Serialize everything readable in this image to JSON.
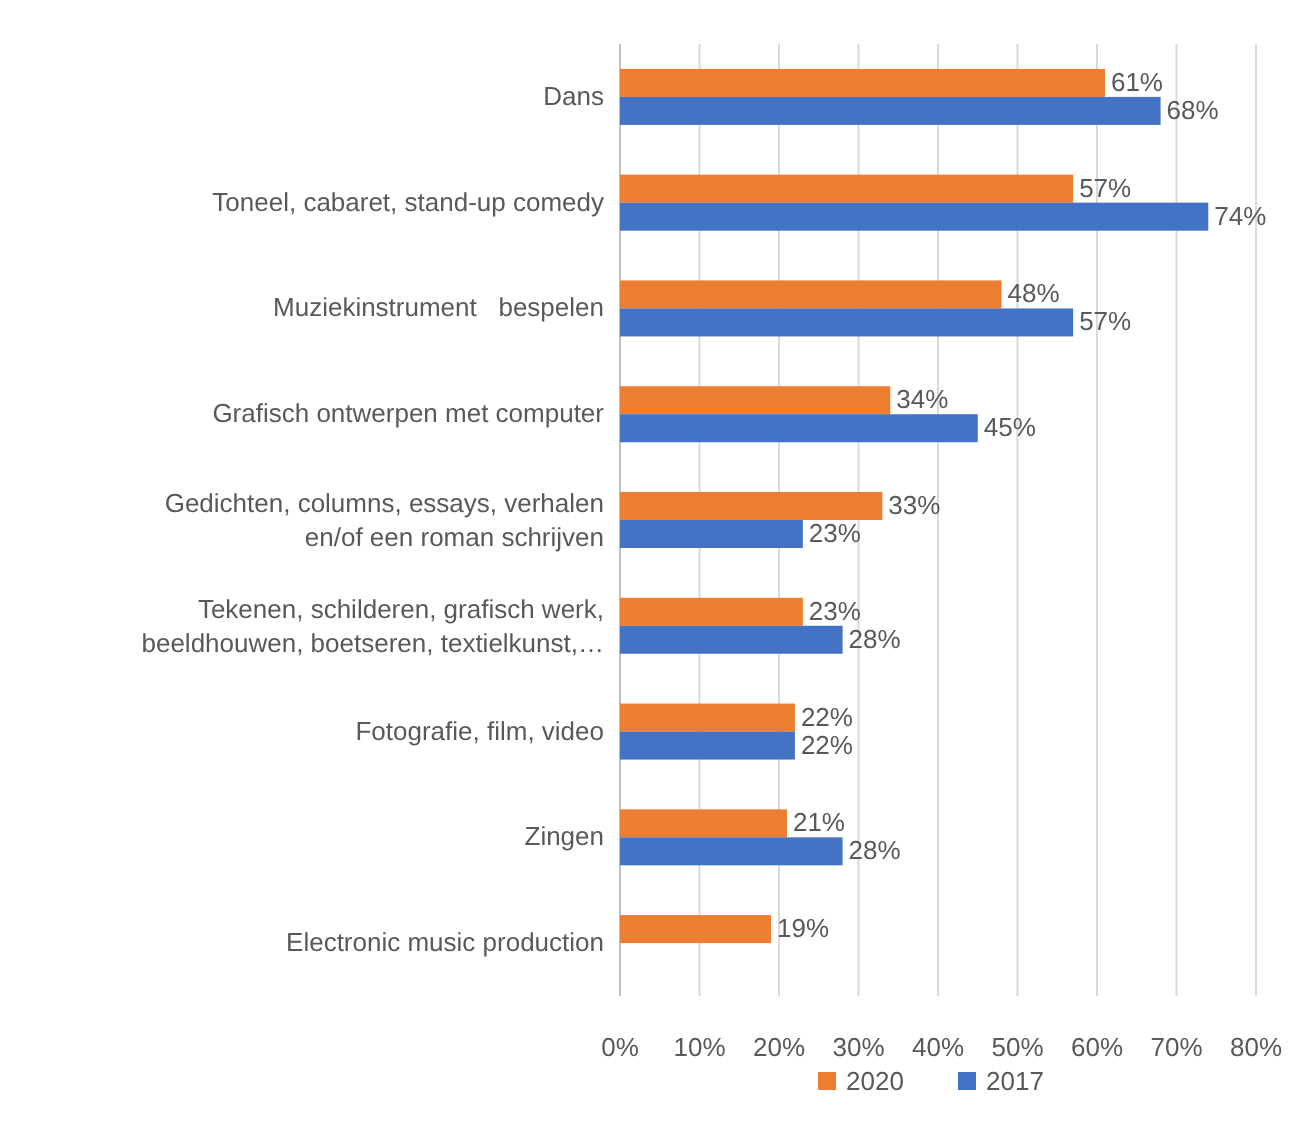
{
  "chart_data": {
    "type": "bar",
    "orientation": "horizontal",
    "categories": [
      "Dans",
      "Toneel, cabaret, stand-up comedy",
      "Muziekinstrument   bespelen",
      "Grafisch ontwerpen met computer",
      "Gedichten, columns, essays, verhalen\nen/of een roman schrijven",
      "Tekenen, schilderen, grafisch werk,\nbeeldhouwen, boetseren, textielkunst,…",
      "Fotografie, film, video",
      "Zingen",
      "Electronic music production"
    ],
    "series": [
      {
        "name": "2020",
        "color": "#ed7d31",
        "values": [
          61,
          57,
          48,
          34,
          33,
          23,
          22,
          21,
          19
        ],
        "value_labels": [
          "61%",
          "57%",
          "48%",
          "34%",
          "33%",
          "23%",
          "22%",
          "21%",
          "19%"
        ]
      },
      {
        "name": "2017",
        "color": "#4472c4",
        "values": [
          68,
          74,
          57,
          45,
          23,
          28,
          22,
          28,
          null
        ],
        "value_labels": [
          "68%",
          "74%",
          "57%",
          "45%",
          "23%",
          "28%",
          "22%",
          "28%",
          null
        ]
      }
    ],
    "xlim": [
      0,
      80
    ],
    "xticks": [
      {
        "value": 0,
        "label": "0%"
      },
      {
        "value": 10,
        "label": "10%"
      },
      {
        "value": 20,
        "label": "20%"
      },
      {
        "value": 30,
        "label": "30%"
      },
      {
        "value": 40,
        "label": "40%"
      },
      {
        "value": 50,
        "label": "50%"
      },
      {
        "value": 60,
        "label": "60%"
      },
      {
        "value": 70,
        "label": "70%"
      },
      {
        "value": 80,
        "label": "80%"
      }
    ],
    "grid": "x",
    "legend": "bottom"
  }
}
